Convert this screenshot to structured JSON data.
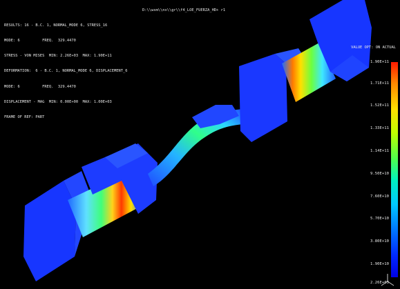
{
  "view": {
    "title": "D:\\\\wsm\\\\nx\\\\gr\\\\f4_LOE_FUERZA_HD+ r1",
    "info_lines": [
      "RESULTS: 16 - B.C. 1, NORMAL_MODE 6, STRESS_16",
      "MODE: 6          FREQ.  329.4470",
      "STRESS - VON MISES  MIN: 2.26E+03  MAX: 1.90E+11",
      "DEFORMATION:  6 - B.C. 1, NORMAL_MODE 6, DISPLACEMENT_6",
      "MODE: 6          FREQ.  329.4470",
      "DISPLACEMENT - MAG  MIN: 0.00E+00  MAX: 1.00E+03",
      "FRAME OF REF: PART"
    ]
  },
  "legend": {
    "title": "VALUE OPT: ON ACTUAL",
    "ticks": [
      "1.90E+11",
      "1.71E+11",
      "1.52E+11",
      "1.33E+11",
      "1.14E+11",
      "9.50E+10",
      "7.60E+10",
      "5.70E+10",
      "3.80E+10",
      "1.90E+10",
      "2.26E+03"
    ],
    "colors": {
      "max": "#ff1a00",
      "high": "#ffe100",
      "mid": "#4dff4d",
      "low": "#00c8ff",
      "min": "#0000e6"
    }
  },
  "model": {
    "body_color": "#1f3dff",
    "background": "#000000"
  }
}
